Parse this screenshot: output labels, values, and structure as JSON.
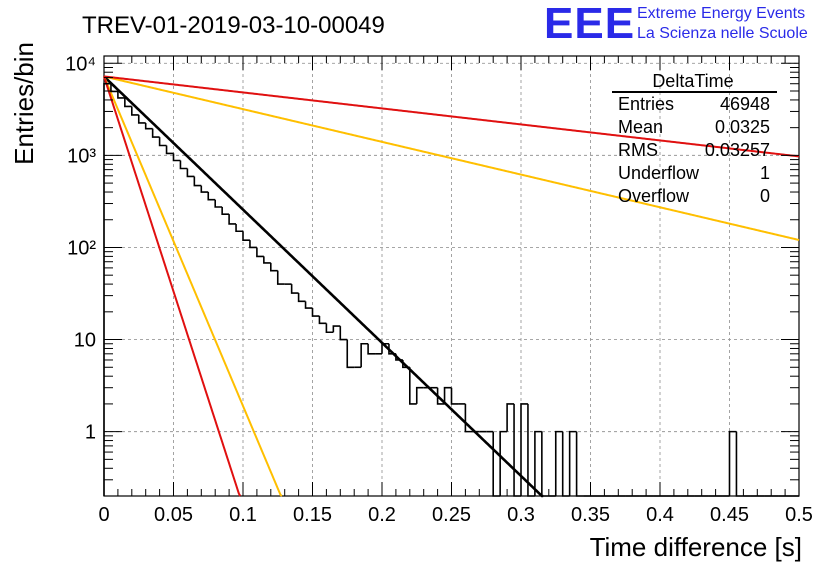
{
  "header": {
    "title": "TREV-01-2019-03-10-00049",
    "logo": "EEE",
    "logo_line1": "Extreme Energy Events",
    "logo_line2": "La Scienza nelle Scuole"
  },
  "stats": {
    "name": "DeltaTime",
    "rows": [
      {
        "label": "Entries",
        "value": "46948"
      },
      {
        "label": "Mean",
        "value": "0.0325"
      },
      {
        "label": "RMS",
        "value": "0.03257"
      },
      {
        "label": "Underflow",
        "value": "1"
      },
      {
        "label": "Overflow",
        "value": "0"
      }
    ]
  },
  "chart_data": {
    "type": "histogram",
    "xlabel": "Time difference [s]",
    "ylabel": "Entries/bin",
    "xlim": [
      0,
      0.5
    ],
    "ylim": [
      0.2,
      12000
    ],
    "log_y": true,
    "grid": true,
    "x_ticks": [
      0,
      0.05,
      0.1,
      0.15,
      0.2,
      0.25,
      0.3,
      0.35,
      0.4,
      0.45,
      0.5
    ],
    "x_tick_labels": [
      "0",
      "0.05",
      "0.1",
      "0.15",
      "0.2",
      "0.25",
      "0.3",
      "0.35",
      "0.4",
      "0.45",
      "0.5"
    ],
    "y_ticks": [
      1,
      10,
      100,
      1000,
      10000
    ],
    "y_tick_labels": [
      "1",
      "10",
      "10²",
      "10³",
      "10⁴"
    ],
    "bin_width": 0.005,
    "series": [
      {
        "color": "#000000",
        "bin_low_edges": [
          0,
          0.005,
          0.01,
          0.015,
          0.02,
          0.025,
          0.03,
          0.035,
          0.04,
          0.045,
          0.05,
          0.055,
          0.06,
          0.065,
          0.07,
          0.075,
          0.08,
          0.085,
          0.09,
          0.095,
          0.1,
          0.105,
          0.11,
          0.115,
          0.12,
          0.125,
          0.13,
          0.135,
          0.14,
          0.145,
          0.15,
          0.155,
          0.16,
          0.165,
          0.17,
          0.175,
          0.18,
          0.185,
          0.19,
          0.195,
          0.2,
          0.205,
          0.21,
          0.215,
          0.22,
          0.225,
          0.23,
          0.235,
          0.24,
          0.245,
          0.25,
          0.255,
          0.26,
          0.265,
          0.27,
          0.275,
          0.28,
          0.285,
          0.29,
          0.295,
          0.3,
          0.305,
          0.31,
          0.315,
          0.32,
          0.325,
          0.33,
          0.335,
          0.34,
          0.345,
          0.35,
          0.355,
          0.36,
          0.365,
          0.37,
          0.375,
          0.38,
          0.385,
          0.39,
          0.395,
          0.4,
          0.405,
          0.41,
          0.415,
          0.42,
          0.425,
          0.43,
          0.435,
          0.44,
          0.445,
          0.45,
          0.455,
          0.46,
          0.465,
          0.47,
          0.475,
          0.48,
          0.485,
          0.49,
          0.495
        ],
        "counts": [
          6000,
          4950,
          4200,
          3400,
          2750,
          2250,
          1950,
          1580,
          1280,
          1050,
          880,
          720,
          590,
          470,
          400,
          330,
          275,
          230,
          180,
          150,
          120,
          100,
          80,
          68,
          56,
          40,
          40,
          32,
          26,
          22,
          18,
          15,
          12,
          14,
          10,
          5,
          5,
          9,
          7,
          7,
          9,
          7,
          6,
          5,
          2,
          3,
          3,
          3,
          2,
          3,
          2,
          2,
          1,
          1,
          1,
          1,
          0,
          1,
          2,
          0,
          2,
          0,
          1,
          0,
          0,
          1,
          0,
          1,
          0,
          0,
          0,
          0,
          0,
          0,
          0,
          0,
          0,
          0,
          0,
          0,
          0,
          0,
          0,
          0,
          0,
          0,
          0,
          0,
          0,
          0,
          1,
          0,
          0,
          0,
          0,
          0,
          0,
          0,
          0,
          0
        ]
      },
      {
        "type": "line",
        "color": "#000000",
        "function": "exponential",
        "y_at_0": 7200,
        "slope_per_s": -33.3
      },
      {
        "type": "line",
        "color": "#ffbf00",
        "function": "exponential",
        "y_at_0": 7200,
        "slope_per_s": -82.4
      },
      {
        "type": "line",
        "color": "#ffbf00",
        "function": "exponential",
        "y_at_0": 7200,
        "slope_per_s": -8.18
      },
      {
        "type": "line",
        "color": "#e01010",
        "function": "exponential",
        "y_at_0": 7200,
        "slope_per_s": -107.5
      },
      {
        "type": "line",
        "color": "#e01010",
        "function": "exponential",
        "y_at_0": 7200,
        "slope_per_s": -4.0
      }
    ]
  }
}
